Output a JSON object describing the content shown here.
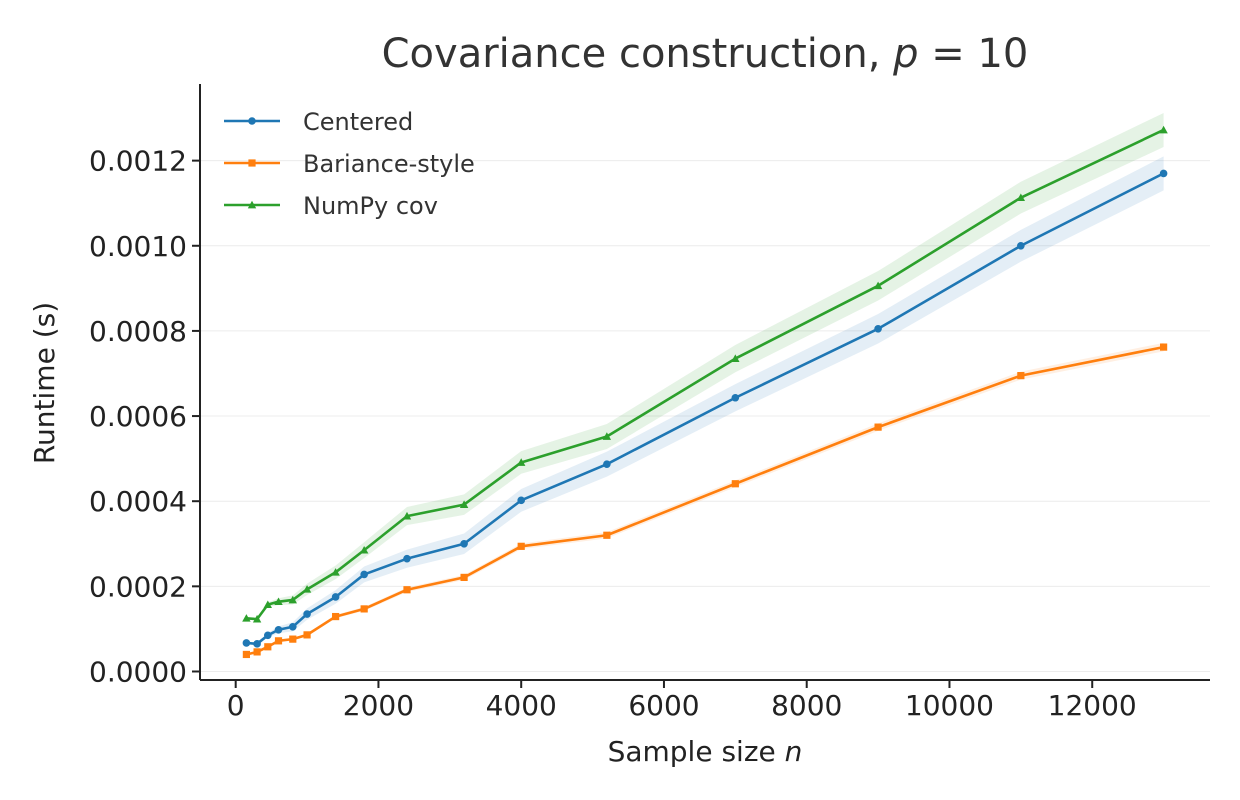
{
  "chart_data": {
    "type": "line",
    "title": "Covariance construction, ",
    "title_math": "p",
    "title_math_rest": " = 10",
    "xlabel": "Sample size ",
    "xlabel_math": "n",
    "ylabel": "Runtime (s)",
    "xlim": [
      -500,
      13650
    ],
    "ylim": [
      -2e-05,
      0.00138
    ],
    "x_ticks": [
      0,
      2000,
      4000,
      6000,
      8000,
      10000,
      12000
    ],
    "x_tick_labels": [
      "0",
      "2000",
      "4000",
      "6000",
      "8000",
      "10000",
      "12000"
    ],
    "y_ticks": [
      0.0,
      0.0002,
      0.0004,
      0.0006,
      0.0008,
      0.001,
      0.0012
    ],
    "y_tick_labels": [
      "0.0000",
      "0.0002",
      "0.0004",
      "0.0006",
      "0.0008",
      "0.0010",
      "0.0012"
    ],
    "grid": true,
    "legend_position": "top-left",
    "x": [
      150,
      300,
      450,
      600,
      800,
      1000,
      1400,
      1800,
      2400,
      3200,
      4000,
      5200,
      7000,
      9000,
      11000,
      13000
    ],
    "series": [
      {
        "name": "Centered",
        "color": "#1f77b4",
        "marker": "circle",
        "values": [
          6.7e-05,
          6.5e-05,
          8.5e-05,
          9.8e-05,
          0.000105,
          0.000135,
          0.000175,
          0.000228,
          0.000265,
          0.0003,
          0.000402,
          0.000487,
          0.000643,
          0.000805,
          0.001,
          0.00117
        ],
        "band": 4e-05
      },
      {
        "name": "Bariance-style",
        "color": "#ff7f0e",
        "marker": "square",
        "values": [
          4e-05,
          4.6e-05,
          5.8e-05,
          7.2e-05,
          7.6e-05,
          8.6e-05,
          0.000129,
          0.000147,
          0.000192,
          0.000221,
          0.000294,
          0.00032,
          0.000441,
          0.000574,
          0.000695,
          0.000762
        ],
        "band": 1e-05
      },
      {
        "name": "NumPy cov",
        "color": "#2ca02c",
        "marker": "triangle",
        "values": [
          0.000125,
          0.000123,
          0.000157,
          0.000164,
          0.000168,
          0.000193,
          0.000233,
          0.000285,
          0.000365,
          0.000392,
          0.000491,
          0.000552,
          0.000735,
          0.000906,
          0.001113,
          0.001272
        ],
        "band": 4e-05
      }
    ]
  }
}
